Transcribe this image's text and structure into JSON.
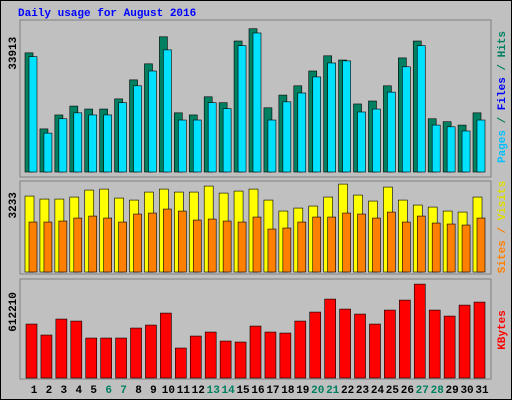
{
  "title": "Daily usage for August 2016",
  "chart_data": [
    {
      "type": "bar",
      "series": [
        {
          "color": "#008060",
          "values": [
            28200,
            10200,
            13500,
            15600,
            14900,
            14900,
            17300,
            21800,
            25600,
            32000,
            14000,
            13500,
            17800,
            16400,
            31000,
            33913,
            15200,
            18200,
            20400,
            23900,
            27500,
            26500,
            16100,
            16800,
            20400,
            27000,
            31000,
            12600,
            11900,
            11100,
            14000
          ]
        },
        {
          "color": "#00e0ff",
          "values": [
            27300,
            9200,
            12600,
            14000,
            13500,
            13500,
            16400,
            20400,
            23900,
            28900,
            12300,
            12300,
            16400,
            15000,
            29900,
            32900,
            12300,
            16600,
            18700,
            22500,
            25800,
            26300,
            14200,
            14900,
            18900,
            24900,
            29900,
            11100,
            10700,
            9700,
            12300
          ]
        }
      ],
      "ylim": [
        0,
        35500
      ],
      "yticks": [
        33913
      ],
      "legend": [
        {
          "text": "Pages",
          "color": "#00c0ff"
        },
        {
          "text": " / ",
          "color": "#008060"
        },
        {
          "text": "Files",
          "color": "#0000ff"
        },
        {
          "text": " / ",
          "color": "#008060"
        },
        {
          "text": "Hits",
          "color": "#008060"
        }
      ]
    },
    {
      "type": "bar",
      "series": [
        {
          "color": "#ffff00",
          "values": [
            2792,
            2682,
            2682,
            2756,
            3013,
            3049,
            2719,
            2645,
            2939,
            3049,
            2939,
            2939,
            3160,
            2902,
            2976,
            3049,
            2645,
            2241,
            2351,
            2425,
            2756,
            3233,
            2829,
            2609,
            3123,
            2645,
            2462,
            2388,
            2241,
            2204,
            2756
          ]
        },
        {
          "color": "#ff8000",
          "values": [
            1837,
            1837,
            1874,
            1984,
            2057,
            1984,
            1837,
            2131,
            2168,
            2315,
            2241,
            1910,
            1947,
            1874,
            1837,
            2021,
            1580,
            1617,
            1837,
            2021,
            2021,
            2168,
            2131,
            1984,
            2204,
            1837,
            2057,
            1800,
            1764,
            1727,
            1984
          ]
        }
      ],
      "ylim": [
        0,
        3310
      ],
      "yticks": [
        3233
      ],
      "legend": [
        {
          "text": "Sites",
          "color": "#ff8000"
        },
        {
          "text": " / ",
          "color": "#ff8000"
        },
        {
          "text": "Visits",
          "color": "#e0e000"
        }
      ]
    },
    {
      "type": "bar",
      "categories": [
        "1",
        "2",
        "3",
        "4",
        "5",
        "6",
        "7",
        "8",
        "9",
        "10",
        "11",
        "12",
        "13",
        "14",
        "15",
        "16",
        "17",
        "18",
        "19",
        "20",
        "21",
        "22",
        "23",
        "24",
        "25",
        "26",
        "27",
        "28",
        "29",
        "30",
        "31"
      ],
      "category_colors": [
        "#000000",
        "#000000",
        "#000000",
        "#000000",
        "#000000",
        "#008060",
        "#008060",
        "#000000",
        "#000000",
        "#000000",
        "#000000",
        "#000000",
        "#008060",
        "#008060",
        "#000000",
        "#000000",
        "#000000",
        "#000000",
        "#000000",
        "#008060",
        "#008060",
        "#000000",
        "#000000",
        "#000000",
        "#000000",
        "#000000",
        "#008060",
        "#008060",
        "#000000",
        "#000000",
        "#000000"
      ],
      "series": [
        {
          "color": "#ff0000",
          "values": [
            351700,
            280100,
            384300,
            371200,
            260500,
            260500,
            260500,
            325700,
            345200,
            423300,
            195400,
            273500,
            299600,
            241000,
            234500,
            338700,
            299600,
            293100,
            371200,
            429900,
            514500,
            449400,
            416800,
            351700,
            442900,
            508000,
            612210,
            442900,
            403800,
            475400,
            495000
          ]
        }
      ],
      "ylim": [
        0,
        626000
      ],
      "yticks": [
        612210
      ],
      "legend": [
        {
          "text": "KBytes",
          "color": "#ff0000"
        }
      ]
    }
  ]
}
